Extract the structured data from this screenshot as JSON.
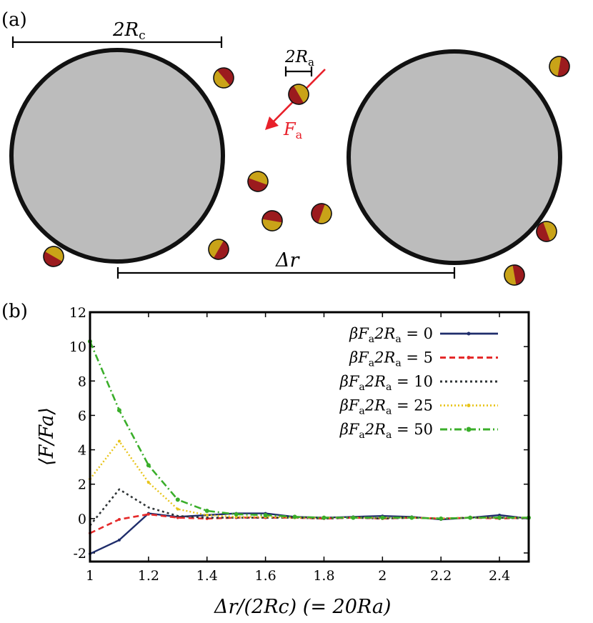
{
  "panel_a": {
    "label": "(a)",
    "colloid_size_label": "2R",
    "colloid_size_sub": "c",
    "active_size_label": "2R",
    "active_size_sub": "a",
    "force_label": "F",
    "force_sub": "a",
    "separation_label": "Δr",
    "colors": {
      "colloid_fill": "#bcbcbc",
      "particle_gold": "#c9a318",
      "particle_red": "#9b1b1e",
      "force_arrow": "#e8202a"
    }
  },
  "panel_b": {
    "label": "(b)"
  },
  "chart_data": {
    "type": "line",
    "ylabel": "⟨F/Fa⟩",
    "xlabel": "Δr/(2Rc) (= 20Ra)",
    "xlim": [
      1,
      2.5
    ],
    "ylim": [
      -2.5,
      12
    ],
    "x_ticks": [
      1,
      1.2,
      1.4,
      1.6,
      1.8,
      2,
      2.2,
      2.4
    ],
    "x_tick_labels": [
      "1",
      "1.2",
      "1.4",
      "1.6",
      "1.8",
      "2",
      "2.2",
      "2.4"
    ],
    "y_ticks": [
      -2,
      0,
      2,
      4,
      6,
      8,
      10,
      12
    ],
    "y_tick_labels": [
      "-2",
      "0",
      "2",
      "4",
      "6",
      "8",
      "10",
      "12"
    ],
    "legend_position": "top-right",
    "x": [
      1.0,
      1.1,
      1.2,
      1.3,
      1.4,
      1.5,
      1.6,
      1.7,
      1.8,
      1.9,
      2.0,
      2.1,
      2.2,
      2.3,
      2.4,
      2.5
    ],
    "series": [
      {
        "name": "βFa2Ra = 0",
        "legend_prefix": "βF",
        "legend_mid": "2R",
        "legend_value": "0",
        "color": "#1f2d6b",
        "dash": "",
        "width": 2.4,
        "marker": 2,
        "values": [
          -2.05,
          -1.25,
          0.3,
          0.1,
          0.2,
          0.3,
          0.3,
          0.1,
          0.05,
          0.1,
          0.15,
          0.1,
          -0.05,
          0.05,
          0.2,
          0.0
        ]
      },
      {
        "name": "βFa2Ra = 5",
        "legend_prefix": "βF",
        "legend_mid": "2R",
        "legend_value": "5",
        "color": "#e52a2a",
        "dash": "8 5",
        "width": 2.6,
        "marker": 2,
        "values": [
          -0.85,
          -0.05,
          0.25,
          0.05,
          0.0,
          0.05,
          0.05,
          0.05,
          0.0,
          0.05,
          0.0,
          0.05,
          0.0,
          0.05,
          0.0,
          0.05
        ]
      },
      {
        "name": "βFa2Ra = 10",
        "legend_prefix": "βF",
        "legend_mid": "2R",
        "legend_value": "10",
        "color": "#2f3436",
        "dash": "3 4",
        "width": 2.6,
        "marker": 0,
        "values": [
          -0.4,
          1.7,
          0.65,
          0.15,
          0.05,
          0.05,
          0.05,
          0.05,
          0.0,
          0.05,
          0.0,
          0.05,
          0.0,
          0.05,
          0.05,
          0.0
        ]
      },
      {
        "name": "βFa2Ra = 25",
        "legend_prefix": "βF",
        "legend_mid": "2R",
        "legend_value": "25",
        "color": "#e8c41a",
        "dash": "2 3",
        "width": 2.4,
        "marker": 2,
        "values": [
          2.3,
          4.5,
          2.1,
          0.55,
          0.2,
          0.1,
          0.1,
          0.05,
          0.05,
          0.05,
          0.05,
          0.05,
          0.0,
          0.05,
          0.05,
          0.05
        ]
      },
      {
        "name": "βFa2Ra = 50",
        "legend_prefix": "βF",
        "legend_mid": "2R",
        "legend_value": "50",
        "color": "#3aae2a",
        "dash": "10 4 2 4",
        "width": 2.6,
        "marker": 3,
        "values": [
          10.3,
          6.3,
          3.1,
          1.1,
          0.45,
          0.25,
          0.2,
          0.1,
          0.05,
          0.05,
          0.05,
          0.05,
          0.0,
          0.05,
          0.05,
          0.05
        ]
      }
    ]
  }
}
